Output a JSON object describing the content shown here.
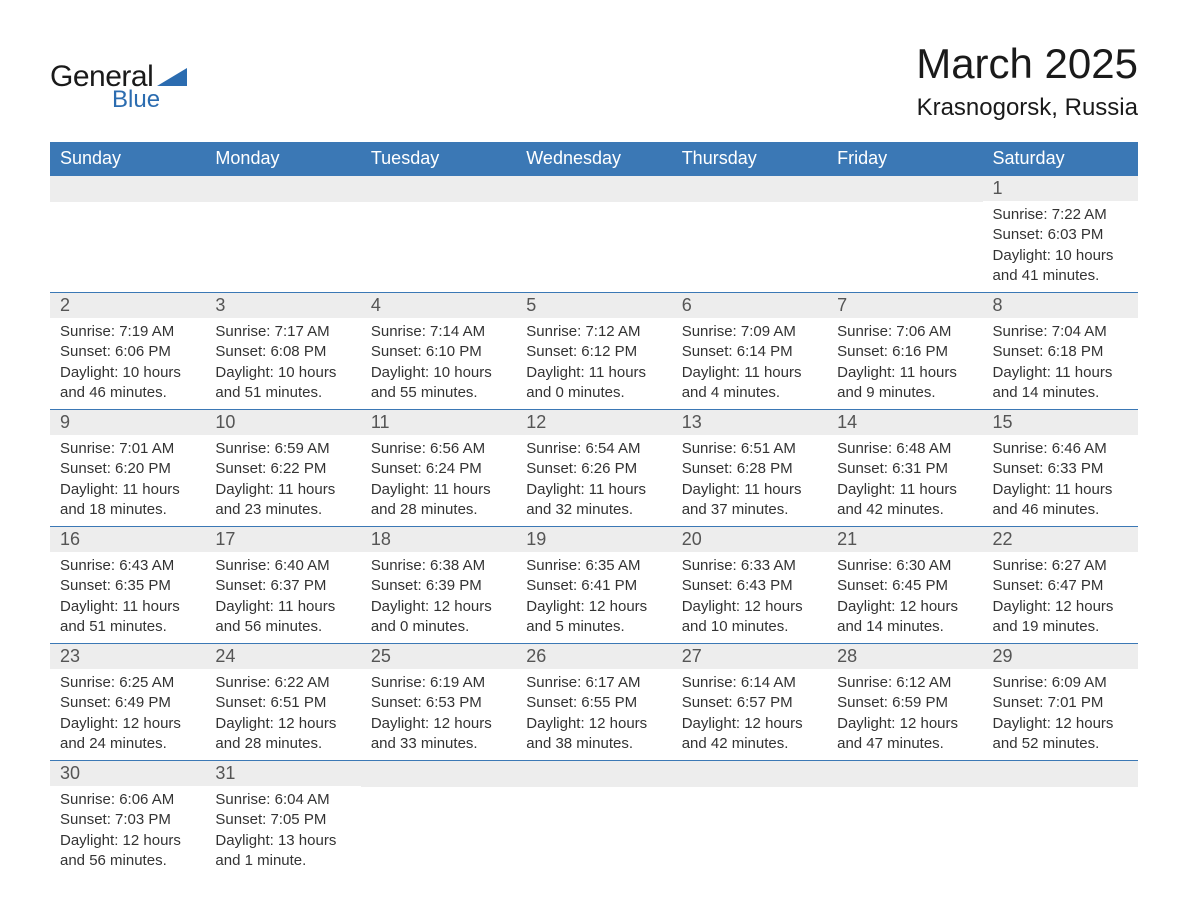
{
  "logo": {
    "text_general": "General",
    "text_blue": "Blue",
    "icon_fill": "#2b6cb0",
    "text_general_color": "#1a1a1a",
    "text_blue_color": "#2b6cb0"
  },
  "title": "March 2025",
  "location": "Krasnogorsk, Russia",
  "colors": {
    "header_bg": "#3b78b5",
    "header_text": "#ffffff",
    "daynum_bg": "#ededed",
    "daynum_text": "#555555",
    "body_text": "#333333",
    "row_border": "#3b78b5",
    "page_bg": "#ffffff"
  },
  "typography": {
    "title_fontsize": 42,
    "location_fontsize": 24,
    "header_fontsize": 18,
    "daynum_fontsize": 18,
    "content_fontsize": 15
  },
  "day_headers": [
    "Sunday",
    "Monday",
    "Tuesday",
    "Wednesday",
    "Thursday",
    "Friday",
    "Saturday"
  ],
  "weeks": [
    [
      {
        "day": "",
        "sunrise": "",
        "sunset": "",
        "daylight1": "",
        "daylight2": ""
      },
      {
        "day": "",
        "sunrise": "",
        "sunset": "",
        "daylight1": "",
        "daylight2": ""
      },
      {
        "day": "",
        "sunrise": "",
        "sunset": "",
        "daylight1": "",
        "daylight2": ""
      },
      {
        "day": "",
        "sunrise": "",
        "sunset": "",
        "daylight1": "",
        "daylight2": ""
      },
      {
        "day": "",
        "sunrise": "",
        "sunset": "",
        "daylight1": "",
        "daylight2": ""
      },
      {
        "day": "",
        "sunrise": "",
        "sunset": "",
        "daylight1": "",
        "daylight2": ""
      },
      {
        "day": "1",
        "sunrise": "Sunrise: 7:22 AM",
        "sunset": "Sunset: 6:03 PM",
        "daylight1": "Daylight: 10 hours",
        "daylight2": "and 41 minutes."
      }
    ],
    [
      {
        "day": "2",
        "sunrise": "Sunrise: 7:19 AM",
        "sunset": "Sunset: 6:06 PM",
        "daylight1": "Daylight: 10 hours",
        "daylight2": "and 46 minutes."
      },
      {
        "day": "3",
        "sunrise": "Sunrise: 7:17 AM",
        "sunset": "Sunset: 6:08 PM",
        "daylight1": "Daylight: 10 hours",
        "daylight2": "and 51 minutes."
      },
      {
        "day": "4",
        "sunrise": "Sunrise: 7:14 AM",
        "sunset": "Sunset: 6:10 PM",
        "daylight1": "Daylight: 10 hours",
        "daylight2": "and 55 minutes."
      },
      {
        "day": "5",
        "sunrise": "Sunrise: 7:12 AM",
        "sunset": "Sunset: 6:12 PM",
        "daylight1": "Daylight: 11 hours",
        "daylight2": "and 0 minutes."
      },
      {
        "day": "6",
        "sunrise": "Sunrise: 7:09 AM",
        "sunset": "Sunset: 6:14 PM",
        "daylight1": "Daylight: 11 hours",
        "daylight2": "and 4 minutes."
      },
      {
        "day": "7",
        "sunrise": "Sunrise: 7:06 AM",
        "sunset": "Sunset: 6:16 PM",
        "daylight1": "Daylight: 11 hours",
        "daylight2": "and 9 minutes."
      },
      {
        "day": "8",
        "sunrise": "Sunrise: 7:04 AM",
        "sunset": "Sunset: 6:18 PM",
        "daylight1": "Daylight: 11 hours",
        "daylight2": "and 14 minutes."
      }
    ],
    [
      {
        "day": "9",
        "sunrise": "Sunrise: 7:01 AM",
        "sunset": "Sunset: 6:20 PM",
        "daylight1": "Daylight: 11 hours",
        "daylight2": "and 18 minutes."
      },
      {
        "day": "10",
        "sunrise": "Sunrise: 6:59 AM",
        "sunset": "Sunset: 6:22 PM",
        "daylight1": "Daylight: 11 hours",
        "daylight2": "and 23 minutes."
      },
      {
        "day": "11",
        "sunrise": "Sunrise: 6:56 AM",
        "sunset": "Sunset: 6:24 PM",
        "daylight1": "Daylight: 11 hours",
        "daylight2": "and 28 minutes."
      },
      {
        "day": "12",
        "sunrise": "Sunrise: 6:54 AM",
        "sunset": "Sunset: 6:26 PM",
        "daylight1": "Daylight: 11 hours",
        "daylight2": "and 32 minutes."
      },
      {
        "day": "13",
        "sunrise": "Sunrise: 6:51 AM",
        "sunset": "Sunset: 6:28 PM",
        "daylight1": "Daylight: 11 hours",
        "daylight2": "and 37 minutes."
      },
      {
        "day": "14",
        "sunrise": "Sunrise: 6:48 AM",
        "sunset": "Sunset: 6:31 PM",
        "daylight1": "Daylight: 11 hours",
        "daylight2": "and 42 minutes."
      },
      {
        "day": "15",
        "sunrise": "Sunrise: 6:46 AM",
        "sunset": "Sunset: 6:33 PM",
        "daylight1": "Daylight: 11 hours",
        "daylight2": "and 46 minutes."
      }
    ],
    [
      {
        "day": "16",
        "sunrise": "Sunrise: 6:43 AM",
        "sunset": "Sunset: 6:35 PM",
        "daylight1": "Daylight: 11 hours",
        "daylight2": "and 51 minutes."
      },
      {
        "day": "17",
        "sunrise": "Sunrise: 6:40 AM",
        "sunset": "Sunset: 6:37 PM",
        "daylight1": "Daylight: 11 hours",
        "daylight2": "and 56 minutes."
      },
      {
        "day": "18",
        "sunrise": "Sunrise: 6:38 AM",
        "sunset": "Sunset: 6:39 PM",
        "daylight1": "Daylight: 12 hours",
        "daylight2": "and 0 minutes."
      },
      {
        "day": "19",
        "sunrise": "Sunrise: 6:35 AM",
        "sunset": "Sunset: 6:41 PM",
        "daylight1": "Daylight: 12 hours",
        "daylight2": "and 5 minutes."
      },
      {
        "day": "20",
        "sunrise": "Sunrise: 6:33 AM",
        "sunset": "Sunset: 6:43 PM",
        "daylight1": "Daylight: 12 hours",
        "daylight2": "and 10 minutes."
      },
      {
        "day": "21",
        "sunrise": "Sunrise: 6:30 AM",
        "sunset": "Sunset: 6:45 PM",
        "daylight1": "Daylight: 12 hours",
        "daylight2": "and 14 minutes."
      },
      {
        "day": "22",
        "sunrise": "Sunrise: 6:27 AM",
        "sunset": "Sunset: 6:47 PM",
        "daylight1": "Daylight: 12 hours",
        "daylight2": "and 19 minutes."
      }
    ],
    [
      {
        "day": "23",
        "sunrise": "Sunrise: 6:25 AM",
        "sunset": "Sunset: 6:49 PM",
        "daylight1": "Daylight: 12 hours",
        "daylight2": "and 24 minutes."
      },
      {
        "day": "24",
        "sunrise": "Sunrise: 6:22 AM",
        "sunset": "Sunset: 6:51 PM",
        "daylight1": "Daylight: 12 hours",
        "daylight2": "and 28 minutes."
      },
      {
        "day": "25",
        "sunrise": "Sunrise: 6:19 AM",
        "sunset": "Sunset: 6:53 PM",
        "daylight1": "Daylight: 12 hours",
        "daylight2": "and 33 minutes."
      },
      {
        "day": "26",
        "sunrise": "Sunrise: 6:17 AM",
        "sunset": "Sunset: 6:55 PM",
        "daylight1": "Daylight: 12 hours",
        "daylight2": "and 38 minutes."
      },
      {
        "day": "27",
        "sunrise": "Sunrise: 6:14 AM",
        "sunset": "Sunset: 6:57 PM",
        "daylight1": "Daylight: 12 hours",
        "daylight2": "and 42 minutes."
      },
      {
        "day": "28",
        "sunrise": "Sunrise: 6:12 AM",
        "sunset": "Sunset: 6:59 PM",
        "daylight1": "Daylight: 12 hours",
        "daylight2": "and 47 minutes."
      },
      {
        "day": "29",
        "sunrise": "Sunrise: 6:09 AM",
        "sunset": "Sunset: 7:01 PM",
        "daylight1": "Daylight: 12 hours",
        "daylight2": "and 52 minutes."
      }
    ],
    [
      {
        "day": "30",
        "sunrise": "Sunrise: 6:06 AM",
        "sunset": "Sunset: 7:03 PM",
        "daylight1": "Daylight: 12 hours",
        "daylight2": "and 56 minutes."
      },
      {
        "day": "31",
        "sunrise": "Sunrise: 6:04 AM",
        "sunset": "Sunset: 7:05 PM",
        "daylight1": "Daylight: 13 hours",
        "daylight2": "and 1 minute."
      },
      {
        "day": "",
        "sunrise": "",
        "sunset": "",
        "daylight1": "",
        "daylight2": ""
      },
      {
        "day": "",
        "sunrise": "",
        "sunset": "",
        "daylight1": "",
        "daylight2": ""
      },
      {
        "day": "",
        "sunrise": "",
        "sunset": "",
        "daylight1": "",
        "daylight2": ""
      },
      {
        "day": "",
        "sunrise": "",
        "sunset": "",
        "daylight1": "",
        "daylight2": ""
      },
      {
        "day": "",
        "sunrise": "",
        "sunset": "",
        "daylight1": "",
        "daylight2": ""
      }
    ]
  ]
}
